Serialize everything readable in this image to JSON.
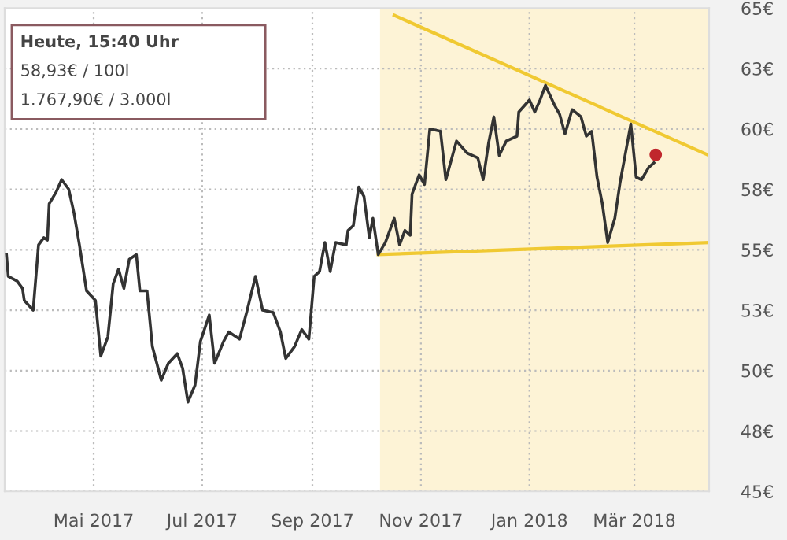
{
  "chart_data": {
    "type": "line",
    "x": [
      "2017-03-13",
      "2017-03-14",
      "2017-03-19",
      "2017-03-22",
      "2017-03-23",
      "2017-03-28",
      "2017-03-31",
      "2017-04-03",
      "2017-04-05",
      "2017-04-06",
      "2017-04-10",
      "2017-04-13",
      "2017-04-17",
      "2017-04-20",
      "2017-04-23",
      "2017-04-27",
      "2017-05-02",
      "2017-05-05",
      "2017-05-09",
      "2017-05-12",
      "2017-05-15",
      "2017-05-18",
      "2017-05-21",
      "2017-05-25",
      "2017-05-27",
      "2017-05-31",
      "2017-06-03",
      "2017-06-08",
      "2017-06-12",
      "2017-06-17",
      "2017-06-20",
      "2017-06-23",
      "2017-06-27",
      "2017-06-30",
      "2017-07-05",
      "2017-07-08",
      "2017-07-13",
      "2017-07-16",
      "2017-07-22",
      "2017-07-26",
      "2017-07-31",
      "2017-08-04",
      "2017-08-10",
      "2017-08-14",
      "2017-08-17",
      "2017-08-22",
      "2017-08-26",
      "2017-08-30",
      "2017-09-02",
      "2017-09-05",
      "2017-09-08",
      "2017-09-11",
      "2017-09-14",
      "2017-09-20",
      "2017-09-21",
      "2017-09-24",
      "2017-09-27",
      "2017-09-30",
      "2017-10-03",
      "2017-10-05",
      "2017-10-08",
      "2017-10-12",
      "2017-10-17",
      "2017-10-20",
      "2017-10-23",
      "2017-10-26",
      "2017-10-27",
      "2017-10-31",
      "2017-11-03",
      "2017-11-06",
      "2017-11-12",
      "2017-11-15",
      "2017-11-18",
      "2017-11-21",
      "2017-11-27",
      "2017-12-03",
      "2017-12-06",
      "2017-12-09",
      "2017-12-12",
      "2017-12-15",
      "2017-12-19",
      "2017-12-25",
      "2017-12-26",
      "2018-01-01",
      "2018-01-04",
      "2018-01-07",
      "2018-01-10",
      "2018-01-15",
      "2018-01-18",
      "2018-01-21",
      "2018-01-25",
      "2018-01-30",
      "2018-02-02",
      "2018-02-05",
      "2018-02-08",
      "2018-02-11",
      "2018-02-14",
      "2018-02-18",
      "2018-02-21",
      "2018-02-24",
      "2018-02-27",
      "2018-03-02",
      "2018-03-05",
      "2018-03-09",
      "2018-03-12"
    ],
    "series": [
      {
        "color": "#333333",
        "values": [
          54.8,
          53.9,
          53.7,
          53.4,
          52.9,
          52.5,
          55.2,
          55.5,
          55.4,
          56.9,
          57.4,
          57.9,
          57.5,
          56.5,
          55.2,
          53.3,
          52.9,
          50.6,
          51.4,
          53.6,
          54.2,
          53.4,
          54.6,
          54.8,
          53.3,
          53.3,
          51.0,
          49.6,
          50.3,
          50.7,
          50.1,
          48.7,
          49.4,
          51.2,
          52.3,
          50.3,
          51.2,
          51.6,
          51.3,
          52.4,
          53.9,
          52.5,
          52.4,
          51.6,
          50.5,
          51.0,
          51.7,
          51.3,
          53.9,
          54.1,
          55.3,
          54.1,
          55.3,
          55.2,
          55.8,
          56.0,
          57.6,
          57.2,
          55.5,
          56.3,
          54.8,
          55.3,
          56.3,
          55.2,
          55.8,
          55.6,
          57.3,
          58.1,
          57.7,
          60.0,
          59.9,
          57.9,
          58.7,
          59.5,
          59.0,
          58.8,
          57.9,
          59.4,
          60.5,
          58.9,
          59.5,
          59.7,
          60.7,
          61.2,
          60.7,
          61.2,
          61.8,
          61.0,
          60.6,
          59.8,
          60.8,
          60.5,
          59.7,
          59.9,
          58.0,
          56.9,
          55.3,
          56.3,
          57.8,
          59.0,
          60.2,
          58.0,
          57.9,
          58.4,
          58.6
        ]
      },
      {
        "type": "line",
        "color": "#f0c932",
        "x": [
          "2017-10-17",
          "2018-04-12"
        ],
        "values": [
          64.7,
          58.9
        ]
      },
      {
        "type": "line",
        "color": "#f0c932",
        "x": [
          "2017-10-08",
          "2018-04-12"
        ],
        "values": [
          54.8,
          55.3
        ]
      },
      {
        "type": "scatter",
        "color": "#c0272d",
        "x": [
          "2018-03-13"
        ],
        "values": [
          58.93
        ]
      }
    ],
    "bands": [
      {
        "axis": "x",
        "from": "2017-10-09",
        "to": "2018-04-12",
        "color": "#fdf3d6"
      }
    ],
    "annotations": [
      "Heute, 15:40 Uhr",
      "58,93€ / 100l",
      "1.767,90€ / 3.000l"
    ],
    "xlim": [
      "2017-03-12",
      "2018-04-12"
    ],
    "xticks": [
      {
        "value": "2017-05-01",
        "label": "Mai 2017"
      },
      {
        "value": "2017-07-01",
        "label": "Jul 2017"
      },
      {
        "value": "2017-09-01",
        "label": "Sep 2017"
      },
      {
        "value": "2017-11-01",
        "label": "Nov 2017"
      },
      {
        "value": "2018-01-01",
        "label": "Jan 2018"
      },
      {
        "value": "2018-03-01",
        "label": "Mär 2018"
      }
    ],
    "ylim": [
      45,
      65
    ],
    "yticks": [
      {
        "value": 45,
        "label": "45€"
      },
      {
        "value": 47.5,
        "label": "48€"
      },
      {
        "value": 50,
        "label": "50€"
      },
      {
        "value": 52.5,
        "label": "53€"
      },
      {
        "value": 55,
        "label": "55€"
      },
      {
        "value": 57.5,
        "label": "58€"
      },
      {
        "value": 60,
        "label": "60€"
      },
      {
        "value": 62.5,
        "label": "63€"
      },
      {
        "value": 65,
        "label": "65€"
      }
    ],
    "grid": true,
    "legend": false
  }
}
